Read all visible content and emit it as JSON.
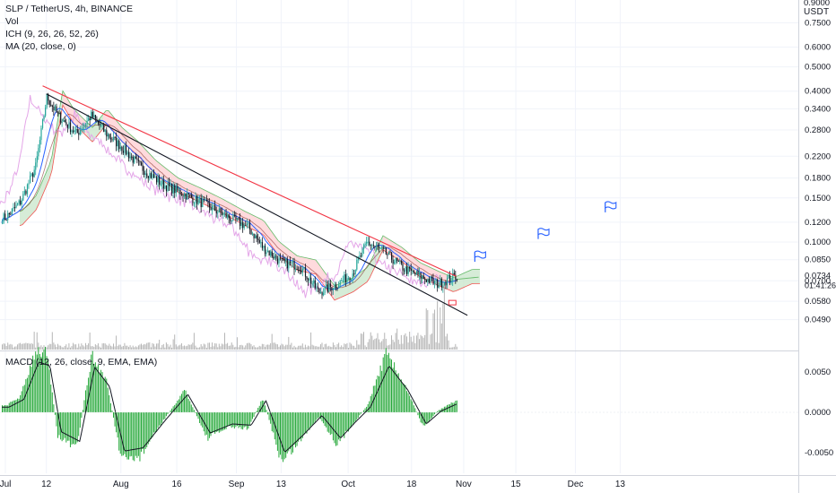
{
  "legend": {
    "symbol": "SLP / TetherUS, 4h, BINANCE",
    "vol": "Vol",
    "ichimoku": "ICH (9, 26, 26, 52, 26)",
    "ma": "MA (20, close, 0)",
    "macd": "MACD (12, 26, close, 9, EMA, EMA)"
  },
  "price_axis": {
    "unit": "USDT",
    "top_partial": "0.9000",
    "ticks": [
      "0.7500",
      "0.6000",
      "0.5000",
      "0.4000",
      "0.3400",
      "0.2800",
      "0.2200",
      "0.1800",
      "0.1500",
      "0.1200",
      "0.1000",
      "0.0850",
      "0.0700",
      "0.0580",
      "0.0490"
    ],
    "last_price": "0.0734",
    "countdown": "01:41:26"
  },
  "macd_axis": {
    "ticks": [
      "0.0050",
      "0.0000",
      "-0.0050"
    ]
  },
  "time_axis": {
    "ticks": [
      "Jul",
      "12",
      "Aug",
      "16",
      "Sep",
      "13",
      "Oct",
      "18",
      "Nov",
      "15",
      "Dec",
      "13"
    ]
  },
  "colors": {
    "up": "#26a69a",
    "down": "#131722",
    "red_trendline": "#f23645",
    "black_trendline": "#131722",
    "ma": "#2962ff",
    "lagging_span": "#e4a6e8",
    "cloud_green": "#c8e6c9",
    "cloud_red": "#ffcdd2",
    "macd_hist": "#26a83a",
    "flag": "#2962ff",
    "volume": "#9e9e9e"
  },
  "chart_data": {
    "type": "line",
    "title": "SLP / TetherUS, 4h, BINANCE",
    "xlabel": "",
    "ylabel": "",
    "y_scale": "log",
    "ylim": [
      0.043,
      0.98
    ],
    "x_date_labels": [
      "Jul",
      "12",
      "Aug",
      "16",
      "Sep",
      "13",
      "Oct",
      "18",
      "Nov",
      "15",
      "Dec",
      "13"
    ],
    "grid": true,
    "series": [
      {
        "kind": "price_close_approx",
        "x": [
          "Jul 1",
          "Jul 5",
          "Jul 9",
          "Jul 12",
          "Jul 15",
          "Jul 20",
          "Jul 24",
          "Jul 28",
          "Aug 1",
          "Aug 6",
          "Aug 12",
          "Aug 18",
          "Aug 24",
          "Aug 30",
          "Sep 4",
          "Sep 8",
          "Sep 13",
          "Sep 18",
          "Sep 23",
          "Sep 28",
          "Oct 2",
          "Oct 6",
          "Oct 11",
          "Oct 16",
          "Oct 21",
          "Oct 25",
          "Oct 30"
        ],
        "values": [
          0.125,
          0.145,
          0.2,
          0.38,
          0.32,
          0.27,
          0.32,
          0.27,
          0.24,
          0.2,
          0.17,
          0.155,
          0.14,
          0.125,
          0.115,
          0.095,
          0.083,
          0.08,
          0.063,
          0.068,
          0.075,
          0.1,
          0.09,
          0.078,
          0.072,
          0.068,
          0.0734
        ]
      }
    ],
    "trendlines": [
      {
        "name": "red",
        "from": {
          "x": "Jul 11",
          "y": 0.42
        },
        "to": {
          "x": "Oct 30",
          "y": 0.073
        }
      },
      {
        "name": "black",
        "from": {
          "x": "Jul 12",
          "y": 0.39
        },
        "to": {
          "x": "Nov 2",
          "y": 0.051
        }
      }
    ],
    "macd": {
      "ylim": [
        -0.0075,
        0.0075
      ],
      "x": [
        "Jul 1",
        "Jul 5",
        "Jul 9",
        "Jul 12",
        "Jul 15",
        "Jul 20",
        "Jul 24",
        "Jul 28",
        "Aug 1",
        "Aug 6",
        "Aug 12",
        "Aug 18",
        "Aug 24",
        "Aug 30",
        "Sep 4",
        "Sep 8",
        "Sep 13",
        "Sep 18",
        "Sep 23",
        "Sep 28",
        "Oct 2",
        "Oct 6",
        "Oct 11",
        "Oct 16",
        "Oct 21",
        "Oct 25",
        "Oct 30"
      ],
      "values": [
        0.0008,
        0.002,
        0.0078,
        0.0072,
        -0.003,
        -0.0045,
        0.007,
        0.004,
        -0.006,
        -0.0055,
        -0.0012,
        0.0028,
        -0.0032,
        -0.0018,
        -0.002,
        0.0018,
        -0.0062,
        -0.0035,
        -0.0005,
        -0.004,
        -0.0015,
        0.0008,
        0.0072,
        0.0035,
        -0.0018,
        0.0002,
        0.0015
      ]
    }
  }
}
